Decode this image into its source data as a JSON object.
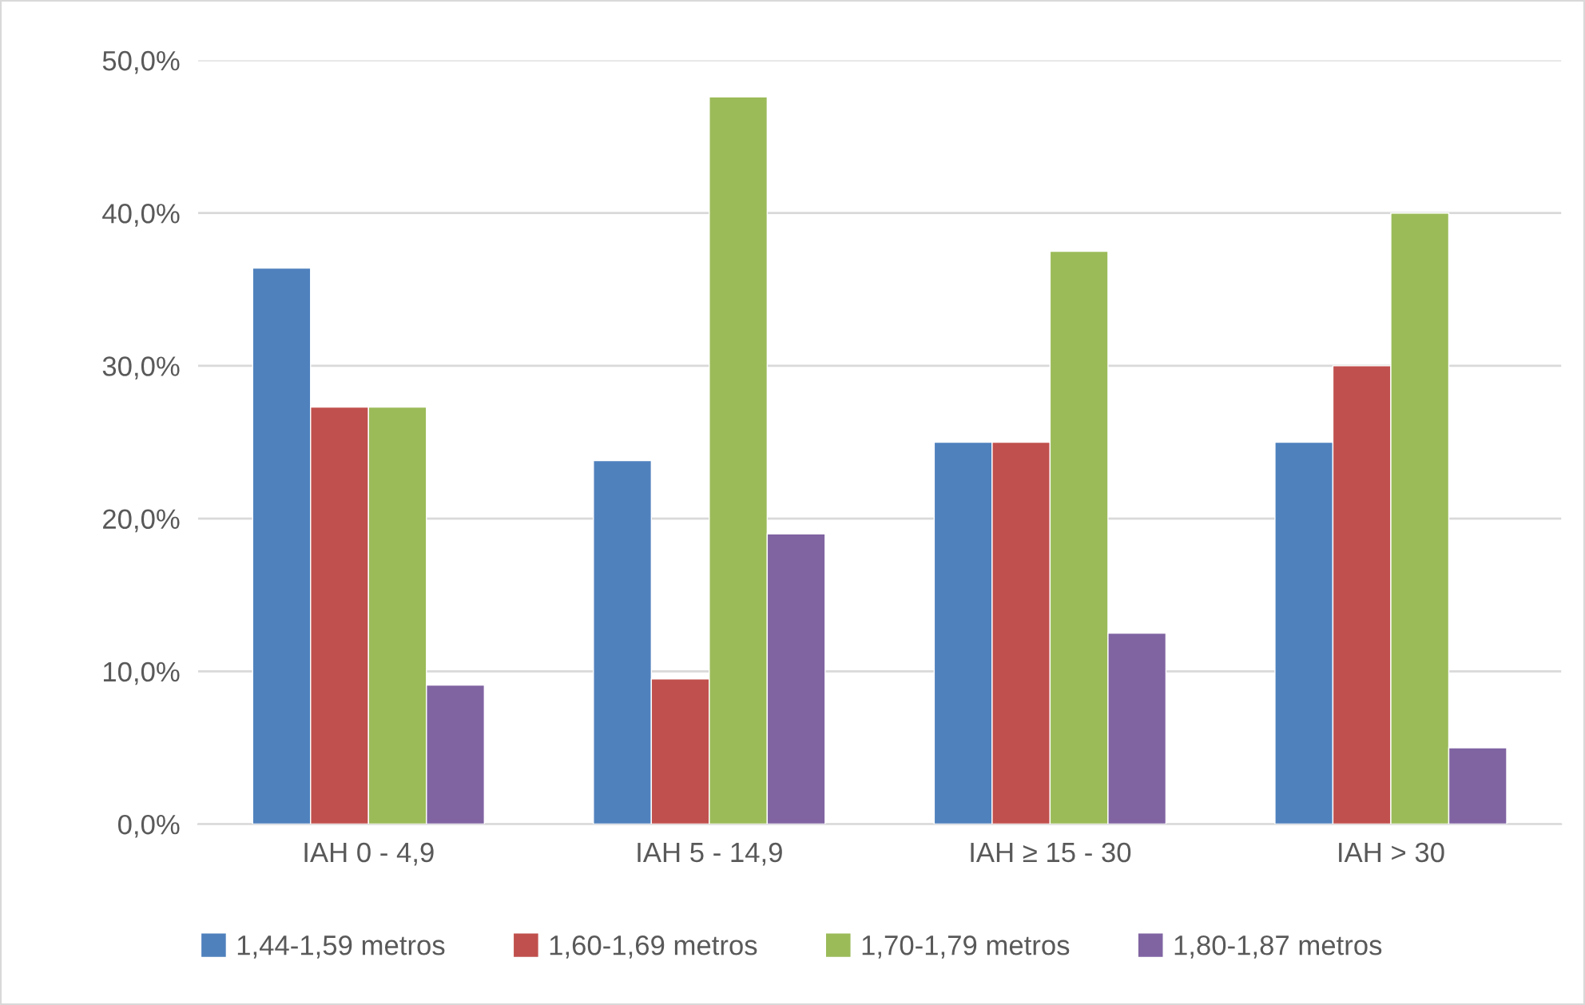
{
  "chart_data": {
    "type": "bar",
    "categories": [
      "IAH 0 - 4,9",
      "IAH 5 - 14,9",
      "IAH ≥ 15 - 30",
      "IAH > 30"
    ],
    "series": [
      {
        "name": "1,44-1,59 metros",
        "color": "#4f81bd",
        "values": [
          36.4,
          23.8,
          25.0,
          25.0
        ]
      },
      {
        "name": "1,60-1,69 metros",
        "color": "#c0504d",
        "values": [
          27.3,
          9.5,
          25.0,
          30.0
        ]
      },
      {
        "name": "1,70-1,79 metros",
        "color": "#9bbb59",
        "values": [
          27.3,
          47.6,
          37.5,
          40.0
        ]
      },
      {
        "name": "1,80-1,87 metros",
        "color": "#8064a2",
        "values": [
          9.1,
          19.0,
          12.5,
          5.0
        ]
      }
    ],
    "ylim": [
      0,
      50
    ],
    "yticks": [
      {
        "value": 0,
        "label": "0,0%"
      },
      {
        "value": 10,
        "label": "10,0%"
      },
      {
        "value": 20,
        "label": "20,0%"
      },
      {
        "value": 30,
        "label": "30,0%"
      },
      {
        "value": 40,
        "label": "40,0%"
      },
      {
        "value": 50,
        "label": "50,0%"
      }
    ],
    "grid": "y",
    "legend": "bottom"
  }
}
